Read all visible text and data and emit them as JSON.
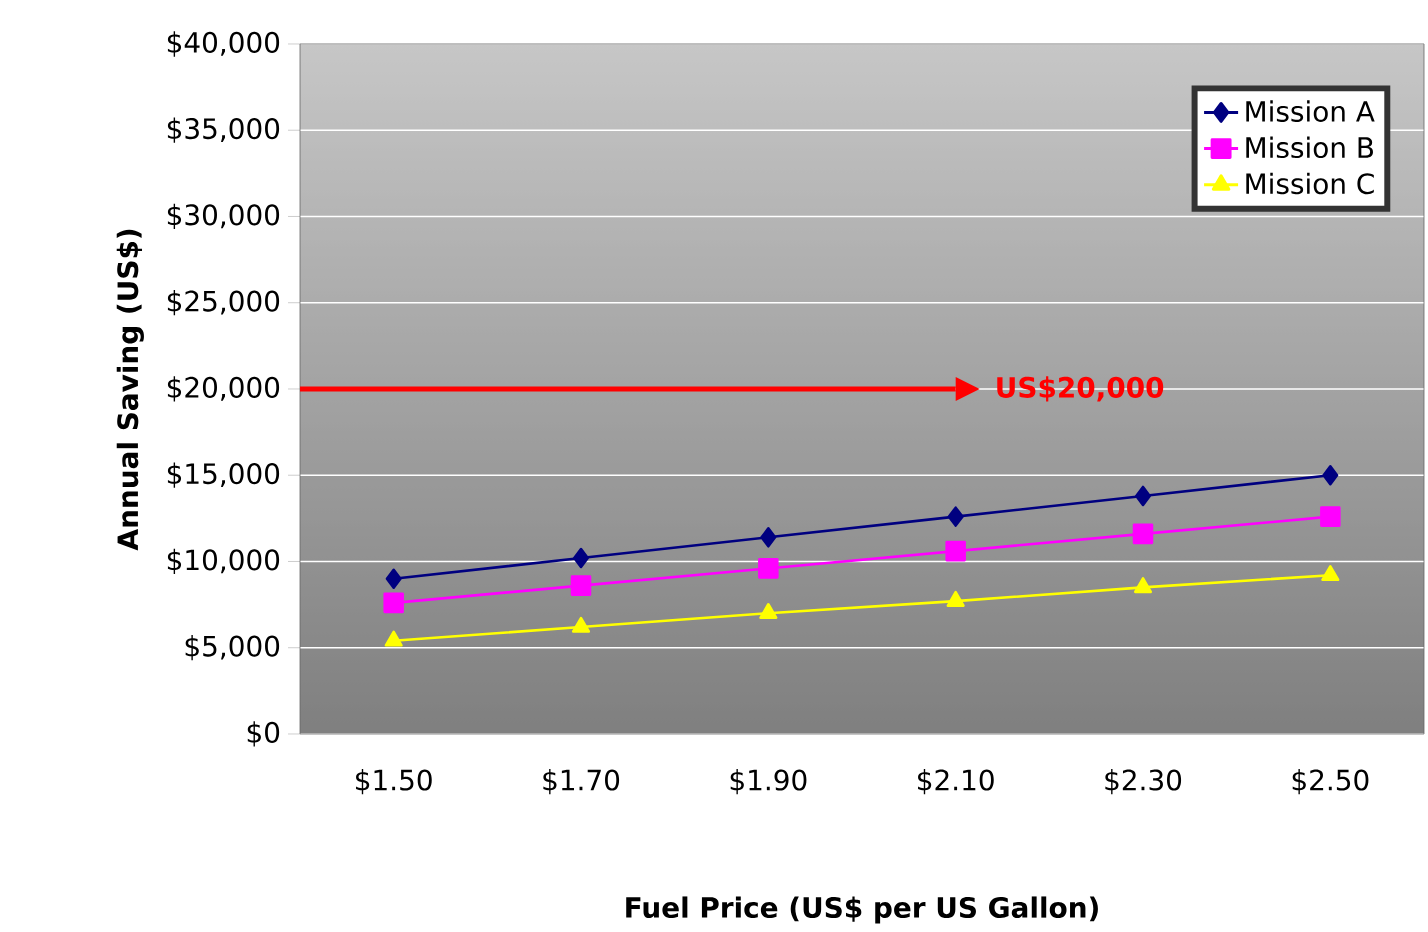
{
  "chart_data": {
    "type": "line",
    "xlabel": "Fuel Price (US$ per US Gallon)",
    "ylabel": "Annual Saving (US$)",
    "categories": [
      "$1.50",
      "$1.70",
      "$1.90",
      "$2.10",
      "$2.30",
      "$2.50"
    ],
    "series": [
      {
        "name": "Mission A",
        "color": "#000080",
        "marker": "diamond",
        "values": [
          9000,
          10200,
          11400,
          12600,
          13800,
          15000
        ]
      },
      {
        "name": "Mission B",
        "color": "#ff00ff",
        "marker": "square",
        "values": [
          7600,
          8600,
          9600,
          10600,
          11600,
          12600
        ]
      },
      {
        "name": "Mission C",
        "color": "#ffff00",
        "marker": "triangle",
        "values": [
          5400,
          6200,
          7000,
          7700,
          8500,
          9200
        ]
      }
    ],
    "ylim": [
      0,
      40000
    ],
    "yticks": [
      {
        "value": 0,
        "label": "$0"
      },
      {
        "value": 5000,
        "label": "$5,000"
      },
      {
        "value": 10000,
        "label": "$10,000"
      },
      {
        "value": 15000,
        "label": "$15,000"
      },
      {
        "value": 20000,
        "label": "$20,000"
      },
      {
        "value": 25000,
        "label": "$25,000"
      },
      {
        "value": 30000,
        "label": "$30,000"
      },
      {
        "value": 35000,
        "label": "$35,000"
      },
      {
        "value": 40000,
        "label": "$40,000"
      }
    ],
    "ref_lines": [
      {
        "axis": "y",
        "value": 20000,
        "label": "US$20,000",
        "color": "#ff0000"
      }
    ],
    "grid": "y",
    "legend": "top right",
    "line_style": "solid"
  }
}
